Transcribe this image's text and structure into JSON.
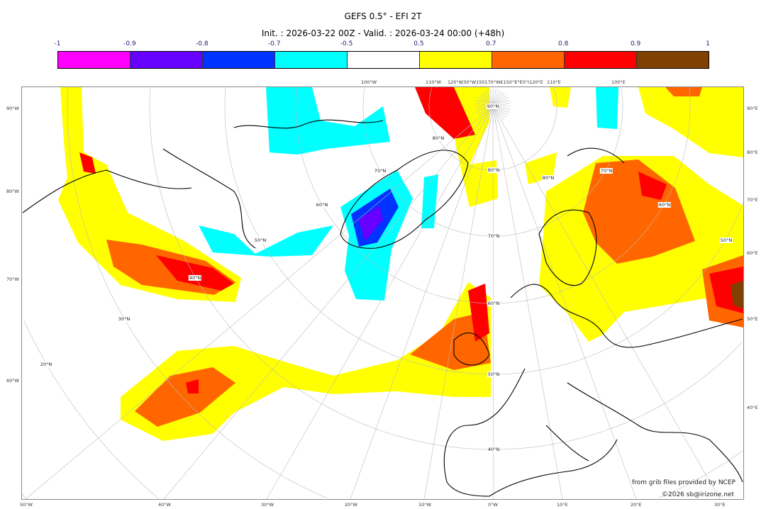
{
  "title": "GEFS 0.5° - EFI 2T",
  "subtitle": "Init. : 2026-03-22 00Z - Valid. : 2026-03-24 00:00 (+48h)",
  "colorbar": {
    "ticks": [
      "-1",
      "-0.9",
      "-0.8",
      "-0.7",
      "-0.5",
      "0.5",
      "0.7",
      "0.8",
      "0.9",
      "1"
    ],
    "colors": [
      "#ff00ff",
      "#6600ff",
      "#0033ff",
      "#00ffff",
      "#ffffff",
      "#ffff00",
      "#ff6600",
      "#ff0000",
      "#804000"
    ]
  },
  "map": {
    "left_labels": [
      "90°W",
      "80°W",
      "70°W",
      "60°W"
    ],
    "right_labels": [
      "90°E",
      "80°E",
      "70°E",
      "60°E",
      "50°E",
      "40°E"
    ],
    "bottom_labels": [
      "50°W",
      "40°W",
      "30°W",
      "20°W",
      "10°W",
      "0°W",
      "10°E",
      "20°E",
      "30°E"
    ],
    "top_labels": [
      "100°W",
      "110°W",
      "120°W30°W150170°W€150°E°E0°I120°E",
      "110°E",
      "100°E"
    ],
    "lat_labels": [
      "90°N",
      "80°N",
      "70°N",
      "60°N",
      "50°N",
      "40°N",
      "30°N",
      "20°N"
    ],
    "center_lat_labels": [
      "80°N",
      "70°N",
      "60°N",
      "50°N",
      "40°N"
    ],
    "right_lat_labels": [
      "80°N",
      "70°N",
      "60°N",
      "50°N"
    ]
  },
  "credits": {
    "source": "from grib files provided by NCEP",
    "copyright": "©2026 sb@irizone.net"
  }
}
